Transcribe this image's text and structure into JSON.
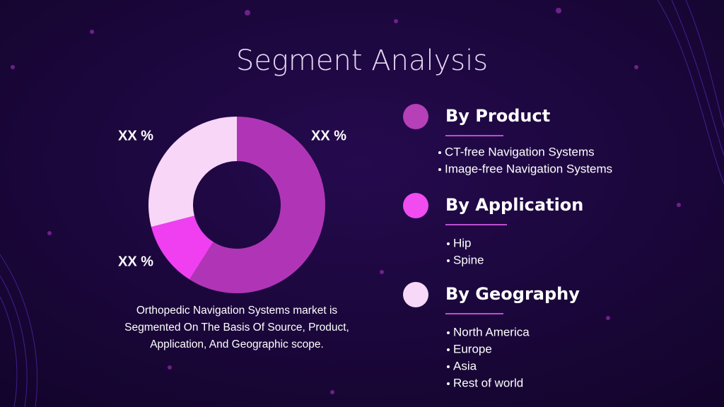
{
  "title": "Segment Analysis",
  "chart_data": {
    "type": "pie",
    "values": [
      59,
      12,
      29
    ],
    "colors": [
      "#b035b6",
      "#ef3ff0",
      "#f8d6f8"
    ],
    "annotations": [
      "XX %",
      "XX %",
      "XX %"
    ]
  },
  "description": [
    "Orthopedic Navigation Systems market is",
    "Segmented On The Basis Of Source, Product,",
    "Application, And Geographic scope."
  ],
  "segments": [
    {
      "heading": "By Product",
      "color": "#b540b8",
      "items": [
        "CT-free Navigation Systems",
        "Image-free Navigation Systems"
      ]
    },
    {
      "heading": "By Application",
      "color": "#f04cf0",
      "items": [
        "Hip",
        "Spine"
      ]
    },
    {
      "heading": "By Geography",
      "color": "#f8d8f8",
      "items": [
        "North America",
        "Europe",
        "Asia",
        "Rest of world"
      ]
    }
  ]
}
